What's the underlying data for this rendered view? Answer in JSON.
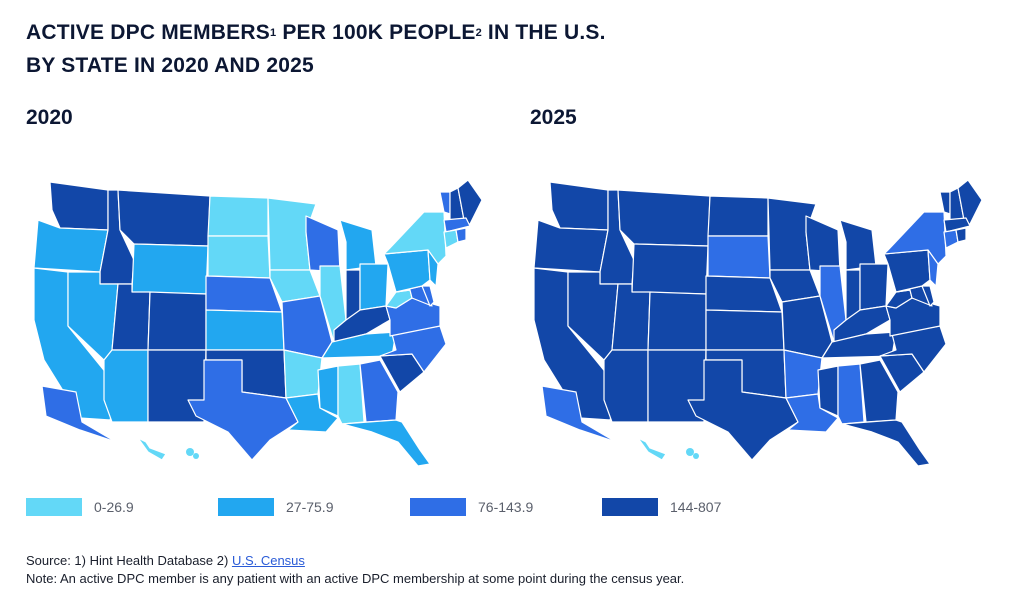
{
  "title": {
    "line1_a": "ACTIVE DPC MEMBERS",
    "sup1": "1",
    "line1_b": " PER 100K PEOPLE",
    "sup2": "2",
    "line1_c": " IN THE U.S.",
    "line2": "BY STATE IN 2020 AND 2025"
  },
  "years": {
    "left": "2020",
    "right": "2025"
  },
  "legend": [
    {
      "label": "0-26.9",
      "color": "#63d8f7"
    },
    {
      "label": "27-75.9",
      "color": "#22a7f0"
    },
    {
      "label": "76-143.9",
      "color": "#2f6ee6"
    },
    {
      "label": "144-807",
      "color": "#1247a8"
    }
  ],
  "source": {
    "prefix": "Source: 1) Hint Health Database 2) ",
    "link": "U.S. Census",
    "note": "Note: An active DPC member is any patient with an active DPC membership at some point during the census year."
  },
  "map_data": {
    "2020": {
      "WA": 3,
      "OR": 1,
      "CA": 1,
      "ID": 3,
      "NV": 1,
      "MT": 3,
      "WY": 1,
      "UT": 3,
      "AZ": 1,
      "CO": 3,
      "NM": 3,
      "ND": 0,
      "SD": 0,
      "NE": 2,
      "KS": 1,
      "OK": 3,
      "TX": 2,
      "MN": 0,
      "IA": 0,
      "MO": 2,
      "AR": 0,
      "LA": 1,
      "WI": 2,
      "IL": 0,
      "MI": 1,
      "IN": 3,
      "OH": 1,
      "KY": 3,
      "TN": 1,
      "MS": 1,
      "AL": 0,
      "GA": 2,
      "FL": 1,
      "SC": 3,
      "NC": 2,
      "VA": 2,
      "WV": 0,
      "MD": 2,
      "DE": 2,
      "PA": 1,
      "NY": 0,
      "NJ": 1,
      "ME": 3,
      "NH": 3,
      "VT": 2,
      "MA": 2,
      "CT": 0,
      "RI": 2,
      "AK": 2,
      "HI": 0
    },
    "2025": {
      "WA": 3,
      "OR": 3,
      "CA": 3,
      "ID": 3,
      "NV": 3,
      "MT": 3,
      "WY": 3,
      "UT": 3,
      "AZ": 3,
      "CO": 3,
      "NM": 3,
      "ND": 3,
      "SD": 2,
      "NE": 3,
      "KS": 3,
      "OK": 3,
      "TX": 3,
      "MN": 3,
      "IA": 3,
      "MO": 3,
      "AR": 2,
      "LA": 2,
      "WI": 3,
      "IL": 2,
      "MI": 3,
      "IN": 3,
      "OH": 3,
      "KY": 3,
      "TN": 3,
      "MS": 3,
      "AL": 2,
      "GA": 3,
      "FL": 3,
      "SC": 3,
      "NC": 3,
      "VA": 3,
      "WV": 3,
      "MD": 3,
      "DE": 3,
      "PA": 3,
      "NY": 2,
      "NJ": 2,
      "ME": 3,
      "NH": 3,
      "VT": 3,
      "MA": 3,
      "CT": 2,
      "RI": 3,
      "AK": 2,
      "HI": 0
    }
  }
}
